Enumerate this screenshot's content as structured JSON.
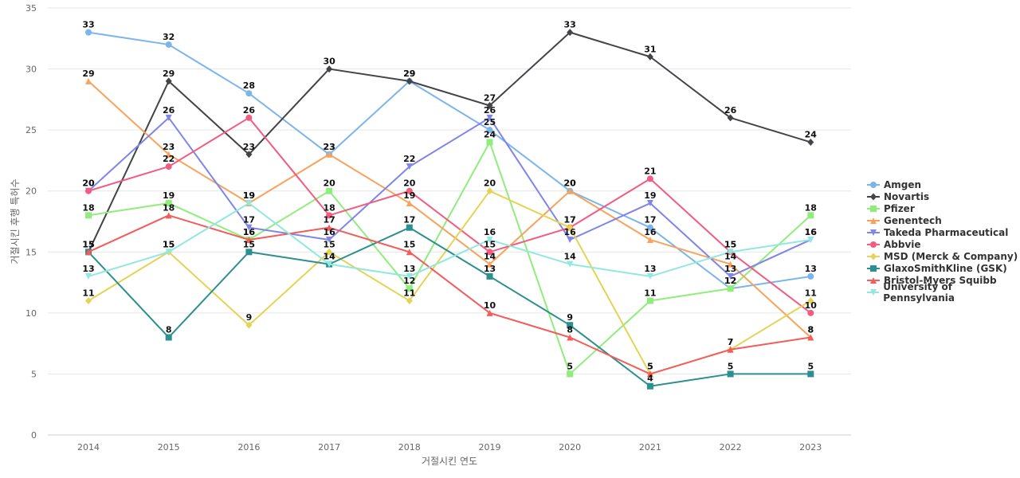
{
  "chart_data": {
    "type": "line",
    "title": "",
    "xlabel": "거절시킨 연도",
    "ylabel": "거절시킨 후행 특허수",
    "x": [
      "2014",
      "2015",
      "2016",
      "2017",
      "2018",
      "2019",
      "2020",
      "2021",
      "2022",
      "2023"
    ],
    "ylim": [
      0,
      35
    ],
    "yticks": [
      0,
      5,
      10,
      15,
      20,
      25,
      30,
      35
    ],
    "grid": true,
    "legend_position": "right",
    "series": [
      {
        "name": "Amgen",
        "color": "#7cb5ec",
        "marker": "circle",
        "values": [
          33,
          32,
          28,
          23,
          29,
          25,
          20,
          17,
          12,
          13
        ]
      },
      {
        "name": "Novartis",
        "color": "#434348",
        "marker": "diamond",
        "values": [
          15,
          29,
          23,
          30,
          29,
          27,
          33,
          31,
          26,
          24
        ]
      },
      {
        "name": "Pfizer",
        "color": "#90ed7d",
        "marker": "square",
        "values": [
          18,
          19,
          16,
          20,
          12,
          24,
          5,
          11,
          12,
          18
        ]
      },
      {
        "name": "Genentech",
        "color": "#f7a35c",
        "marker": "triangle",
        "values": [
          29,
          23,
          19,
          23,
          19,
          14,
          20,
          16,
          14,
          8
        ]
      },
      {
        "name": "Takeda Pharmaceutical",
        "color": "#8085e9",
        "marker": "triangle-down",
        "values": [
          20,
          26,
          17,
          16,
          22,
          26,
          16,
          19,
          13,
          16
        ]
      },
      {
        "name": "Abbvie",
        "color": "#f15c80",
        "marker": "circle",
        "values": [
          20,
          22,
          26,
          18,
          20,
          15,
          17,
          21,
          15,
          10
        ]
      },
      {
        "name": "MSD (Merck & Company)",
        "color": "#e4d354",
        "marker": "diamond",
        "values": [
          11,
          15,
          9,
          15,
          11,
          20,
          17,
          5,
          7,
          11
        ]
      },
      {
        "name": "GlaxoSmithKline (GSK)",
        "color": "#2b908f",
        "marker": "square",
        "values": [
          15,
          8,
          15,
          14,
          17,
          13,
          9,
          4,
          5,
          5
        ]
      },
      {
        "name": "Bristol-Myers Squibb",
        "color": "#f45b5b",
        "marker": "triangle",
        "values": [
          15,
          18,
          16,
          17,
          15,
          10,
          8,
          5,
          7,
          8
        ]
      },
      {
        "name": "University of Pennsylvania",
        "color": "#91e8e1",
        "marker": "triangle-down",
        "values": [
          13,
          15,
          19,
          14,
          13,
          16,
          14,
          13,
          15,
          16
        ]
      }
    ]
  }
}
